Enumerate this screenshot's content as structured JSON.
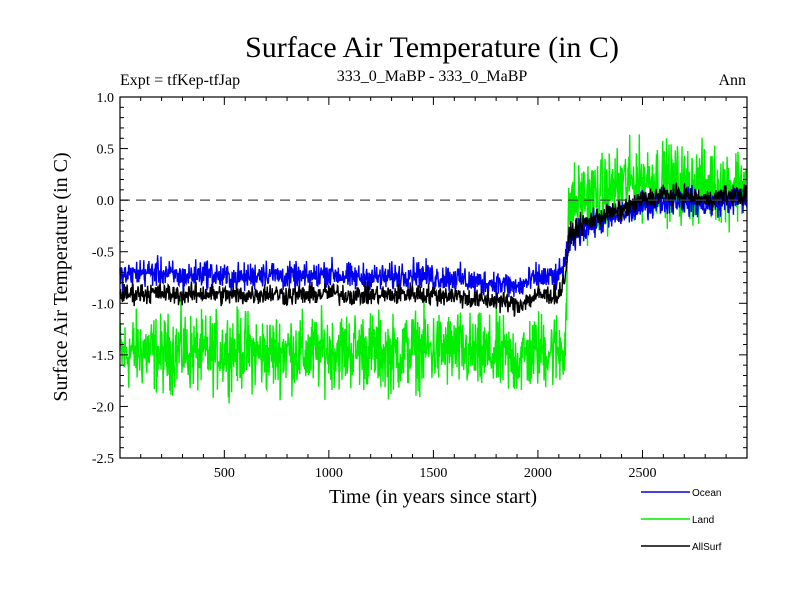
{
  "header": {
    "title": "Surface Air Temperature (in C)",
    "expt": "Expt = tfKep-tfJap",
    "subtitle": "333_0_MaBP - 333_0_MaBP",
    "period": "Ann"
  },
  "chart_data": {
    "type": "line",
    "title": "Surface Air Temperature (in C)",
    "xlabel": "Time (in years since start)",
    "ylabel": "Surface Air Temperature (in C)",
    "xlim": [
      1,
      3000
    ],
    "ylim": [
      -2.5,
      1.0
    ],
    "x_ticks": [
      500,
      1000,
      1500,
      2000,
      2500
    ],
    "x_tick_labels": [
      "500",
      "1000",
      "1500",
      "2000",
      "2500"
    ],
    "y_ticks": [
      -2.5,
      -2.0,
      -1.5,
      -1.0,
      -0.5,
      0.0,
      0.5,
      1.0
    ],
    "y_tick_labels": [
      "-2.5",
      "-2.0",
      "-1.5",
      "-1.0",
      "-0.5",
      "0.0",
      "0.5",
      "1.0"
    ],
    "reference_line": {
      "y": 0.0,
      "style": "dashed",
      "color": "#000000"
    },
    "legend_position": "bottom-right",
    "series": [
      {
        "name": "Land",
        "color": "#00ee00",
        "x": [
          1,
          100,
          200,
          300,
          400,
          500,
          600,
          700,
          800,
          900,
          1000,
          1100,
          1200,
          1300,
          1400,
          1500,
          1600,
          1700,
          1800,
          1900,
          2000,
          2100,
          2130,
          2150,
          2200,
          2300,
          2400,
          2500,
          2600,
          2700,
          2800,
          2900,
          3000
        ],
        "values": [
          -1.5,
          -1.45,
          -1.5,
          -1.45,
          -1.5,
          -1.45,
          -1.45,
          -1.5,
          -1.45,
          -1.5,
          -1.45,
          -1.45,
          -1.45,
          -1.5,
          -1.45,
          -1.45,
          -1.45,
          -1.5,
          -1.5,
          -1.55,
          -1.45,
          -1.45,
          -1.4,
          -0.05,
          0.0,
          0.05,
          0.15,
          0.2,
          0.2,
          0.15,
          0.15,
          0.15,
          0.15
        ],
        "noise_amplitude": 0.55
      },
      {
        "name": "Ocean",
        "color": "#0000ee",
        "x": [
          1,
          100,
          200,
          300,
          400,
          500,
          600,
          700,
          800,
          900,
          1000,
          1100,
          1200,
          1300,
          1400,
          1500,
          1600,
          1700,
          1800,
          1900,
          2000,
          2100,
          2130,
          2150,
          2200,
          2300,
          2400,
          2500,
          2600,
          2700,
          2800,
          2900,
          3000
        ],
        "values": [
          -0.75,
          -0.7,
          -0.7,
          -0.75,
          -0.7,
          -0.75,
          -0.75,
          -0.7,
          -0.75,
          -0.75,
          -0.7,
          -0.75,
          -0.75,
          -0.75,
          -0.7,
          -0.75,
          -0.75,
          -0.8,
          -0.8,
          -0.85,
          -0.75,
          -0.75,
          -0.6,
          -0.4,
          -0.3,
          -0.2,
          -0.15,
          -0.05,
          0.0,
          0.0,
          -0.05,
          0.0,
          0.0
        ],
        "noise_amplitude": 0.2
      },
      {
        "name": "AllSurf",
        "color": "#000000",
        "x": [
          1,
          100,
          200,
          300,
          400,
          500,
          600,
          700,
          800,
          900,
          1000,
          1100,
          1200,
          1300,
          1400,
          1500,
          1600,
          1700,
          1800,
          1900,
          2000,
          2100,
          2130,
          2150,
          2200,
          2300,
          2400,
          2500,
          2600,
          2700,
          2800,
          2900,
          3000
        ],
        "values": [
          -0.92,
          -0.9,
          -0.9,
          -0.92,
          -0.9,
          -0.92,
          -0.92,
          -0.9,
          -0.92,
          -0.92,
          -0.9,
          -0.92,
          -0.92,
          -0.92,
          -0.9,
          -0.92,
          -0.92,
          -0.97,
          -0.97,
          -1.02,
          -0.92,
          -0.92,
          -0.75,
          -0.35,
          -0.25,
          -0.15,
          -0.1,
          0.0,
          0.05,
          0.05,
          0.0,
          0.05,
          0.05
        ],
        "noise_amplitude": 0.15
      }
    ]
  }
}
